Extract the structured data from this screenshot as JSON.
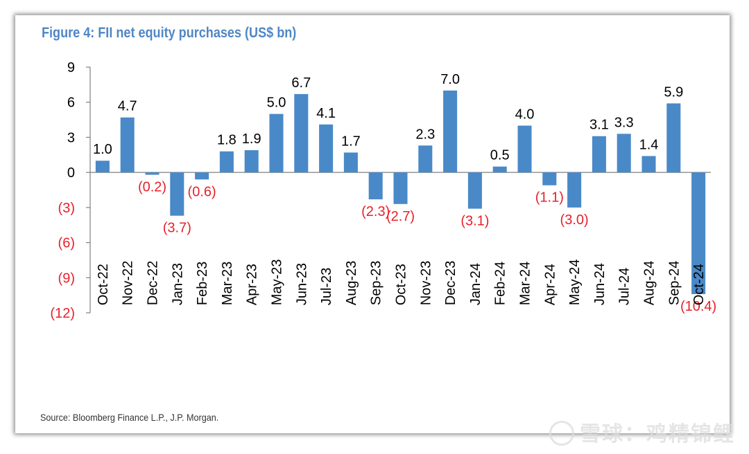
{
  "title": "Figure 4: FII net equity purchases (US$ bn)",
  "source": "Source: Bloomberg Finance L.P., J.P. Morgan.",
  "watermark": "雪球：鸡精锦鲤",
  "colors": {
    "bar": "#4a89c8",
    "negative_text": "#e8202a",
    "title": "#4f86c6"
  },
  "chart_data": {
    "type": "bar",
    "categories": [
      "Oct-22",
      "Nov-22",
      "Dec-22",
      "Jan-23",
      "Feb-23",
      "Mar-23",
      "Apr-23",
      "May-23",
      "Jun-23",
      "Jul-23",
      "Aug-23",
      "Sep-23",
      "Oct-23",
      "Nov-23",
      "Dec-23",
      "Jan-24",
      "Feb-24",
      "Mar-24",
      "Apr-24",
      "May-24",
      "Jun-24",
      "Jul-24",
      "Aug-24",
      "Sep-24",
      "Oct-24"
    ],
    "values": [
      1.0,
      4.7,
      -0.2,
      -3.7,
      -0.6,
      1.8,
      1.9,
      5.0,
      6.7,
      4.1,
      1.7,
      -2.3,
      -2.7,
      2.3,
      7.0,
      -3.1,
      0.5,
      4.0,
      -1.1,
      -3.0,
      3.1,
      3.3,
      1.4,
      5.9,
      -10.4
    ],
    "data_labels": [
      "1.0",
      "4.7",
      "(0.2)",
      "(3.7)",
      "(0.6)",
      "1.8",
      "1.9",
      "5.0",
      "6.7",
      "4.1",
      "1.7",
      "(2.3)",
      "(2.7)",
      "2.3",
      "7.0",
      "(3.1)",
      "0.5",
      "4.0",
      "(1.1)",
      "(3.0)",
      "3.1",
      "3.3",
      "1.4",
      "5.9",
      "(10.4)"
    ],
    "ylim": [
      -12,
      9
    ],
    "yticks": [
      9,
      6,
      3,
      0,
      -3,
      -6,
      -9,
      -12
    ],
    "ytick_labels": [
      "9",
      "6",
      "3",
      "0",
      "(3)",
      "(6)",
      "(9)",
      "(12)"
    ],
    "grid": false,
    "xlabel": "",
    "ylabel": ""
  }
}
